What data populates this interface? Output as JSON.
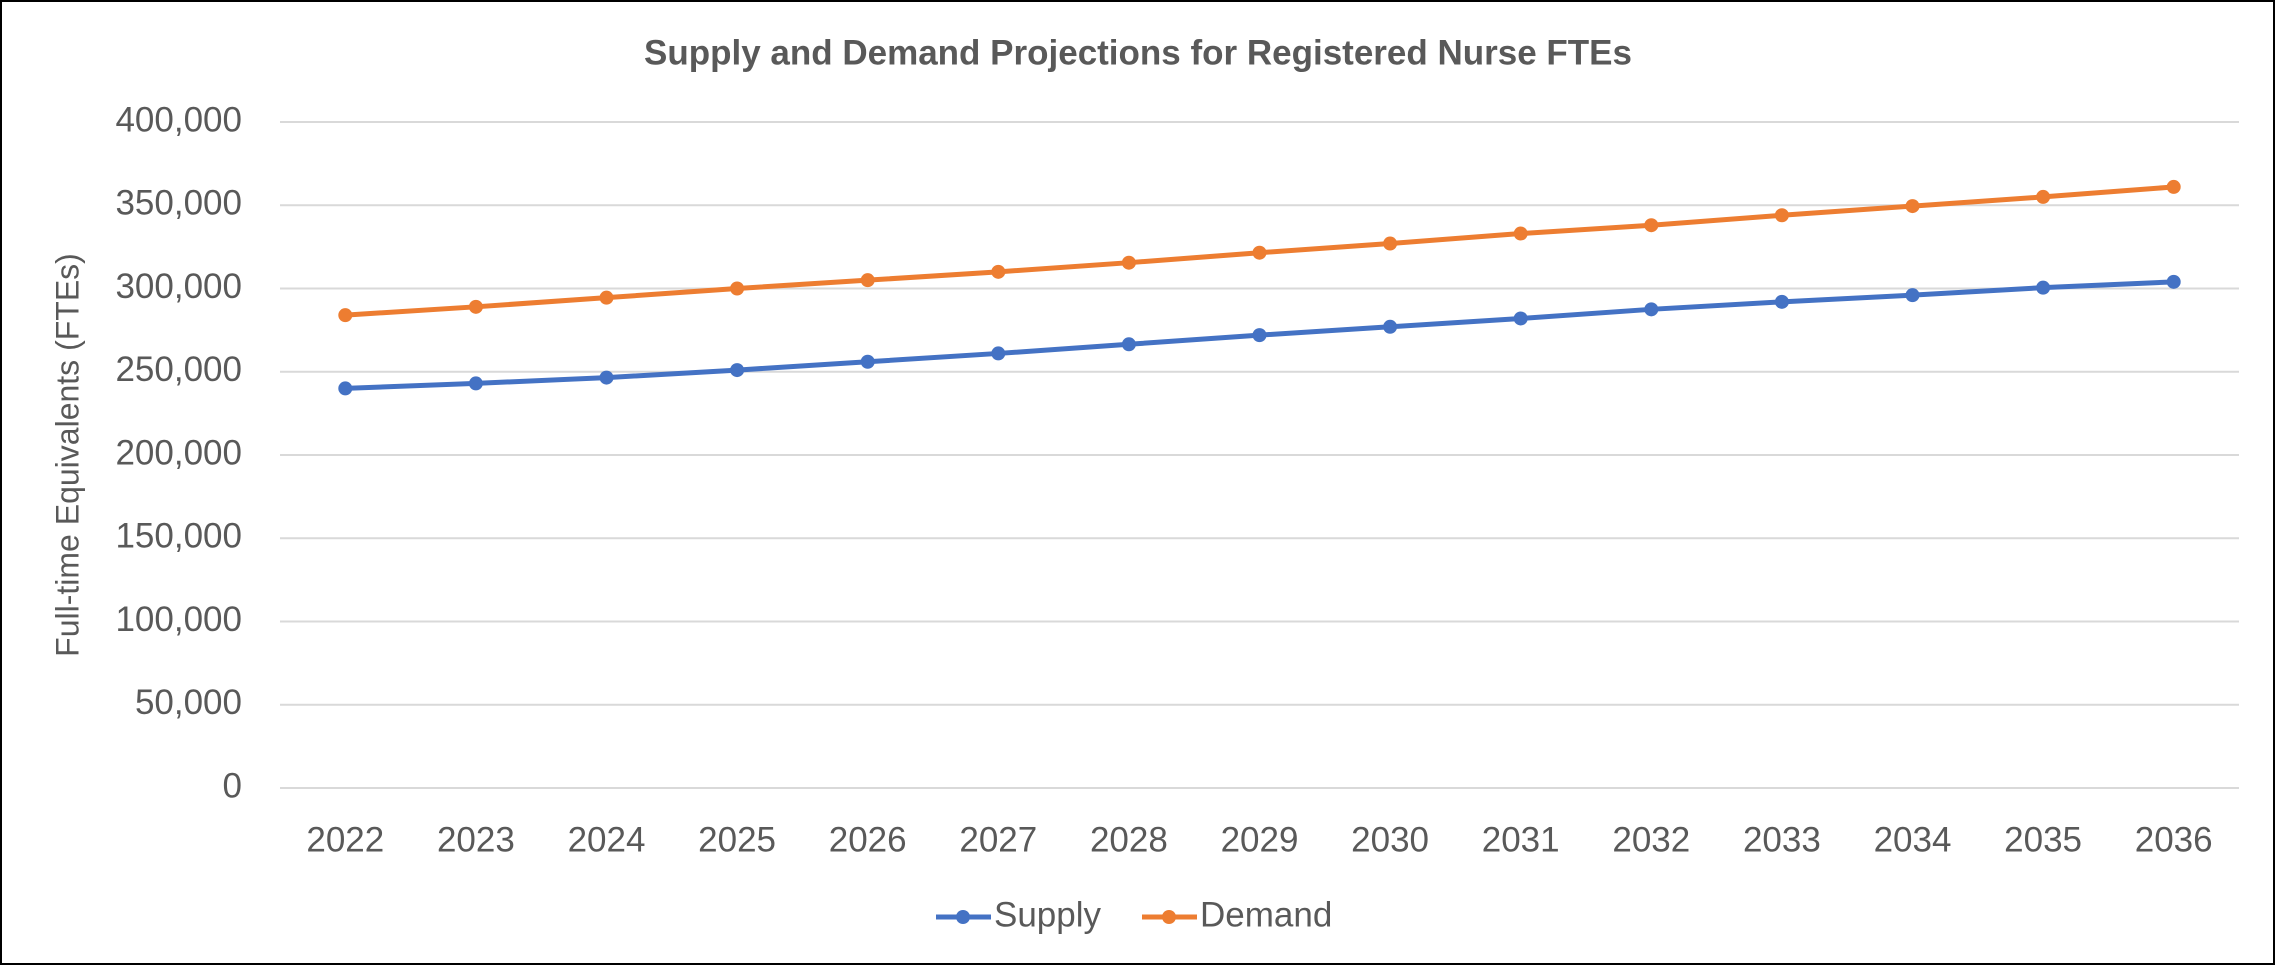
{
  "chart_data": {
    "type": "line",
    "title": "Supply and Demand Projections for Registered Nurse FTEs",
    "y_label": "Full-time Equivalents (FTEs)",
    "categories": [
      "2022",
      "2023",
      "2024",
      "2025",
      "2026",
      "2027",
      "2028",
      "2029",
      "2030",
      "2031",
      "2032",
      "2033",
      "2034",
      "2035",
      "2036"
    ],
    "series": [
      {
        "name": "Supply",
        "color": "#4472c4",
        "values": [
          240000,
          243000,
          246500,
          251000,
          256000,
          261000,
          266500,
          272000,
          277000,
          282000,
          287500,
          292000,
          296000,
          300500,
          304000
        ]
      },
      {
        "name": "Demand",
        "color": "#ed7d31",
        "values": [
          284000,
          289000,
          294500,
          300000,
          305000,
          310000,
          315500,
          321500,
          327000,
          333000,
          338000,
          344000,
          349500,
          355000,
          361000
        ]
      }
    ],
    "ylim": [
      0,
      400000
    ],
    "yticks": [
      0,
      {
        "value": 50000,
        "label": "50,000"
      },
      {
        "value": 100000,
        "label": "100,000"
      },
      {
        "value": 150000,
        "label": "150,000"
      },
      {
        "value": 200000,
        "label": "200,000"
      },
      {
        "value": 250000,
        "label": "250,000"
      },
      {
        "value": 300000,
        "label": "300,000"
      },
      {
        "value": 350000,
        "label": "350,000"
      },
      {
        "value": 400000,
        "label": "400,000"
      }
    ],
    "grid": true,
    "legend": "bottom"
  }
}
